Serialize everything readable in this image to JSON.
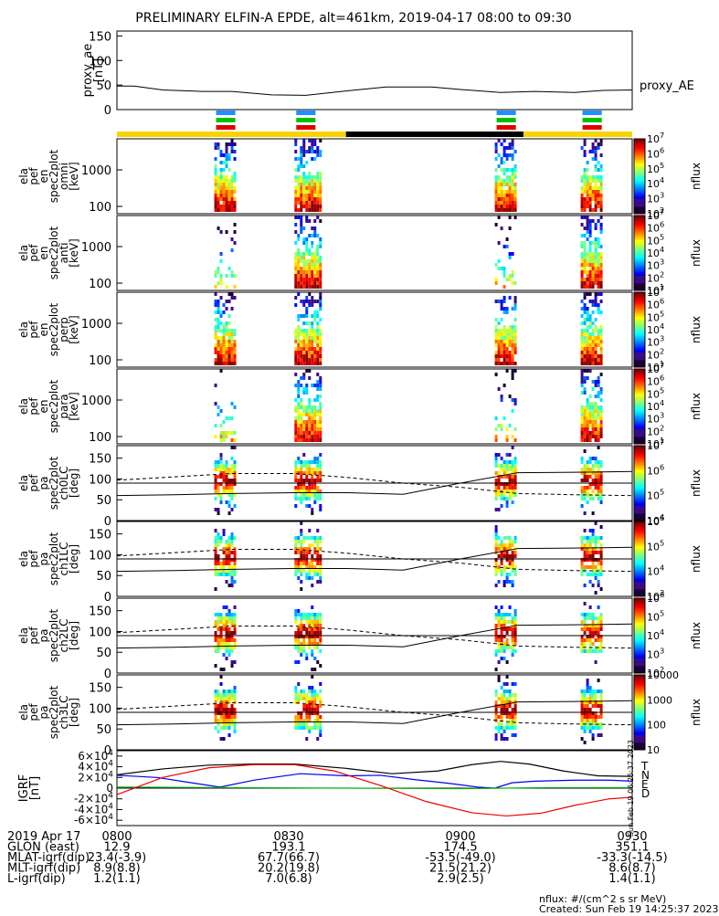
{
  "title": "PRELIMINARY ELFIN-A EPDE, alt=461km, 2019-04-17 08:00 to 09:30",
  "time_axis": {
    "start": "08:00",
    "end": "09:30",
    "ticks": [
      "0800",
      "0830",
      "0900",
      "0930"
    ]
  },
  "footer": {
    "rows": [
      {
        "label": "2019 Apr 17",
        "values": [
          "0800",
          "0830",
          "0900",
          "0930"
        ]
      },
      {
        "label": "GLON (east)",
        "values": [
          "12.9",
          "193.1",
          "174.5",
          "351.1"
        ]
      },
      {
        "label": "MLAT-igrf(dip)",
        "values": [
          "23.4(-3.9)",
          "67.7(66.7)",
          "-53.5(-49.0)",
          "-33.3(-14.5)"
        ]
      },
      {
        "label": "MLT-igrf(dip)",
        "values": [
          "8.9(8.8)",
          "20.2(19.8)",
          "21.5(21.2)",
          "8.6(8.7)"
        ]
      },
      {
        "label": "L-igrf(dip)",
        "values": [
          "1.2(1.1)",
          "7.0(6.8)",
          "2.9(2.5)",
          "1.4(1.1)"
        ]
      }
    ],
    "units_note": "nflux: #/(cm^2 s sr MeV)",
    "created": "Created: Sun Feb 19 14:25:37 2023",
    "side_stamp": "Sun Feb 19 06:25:37 2023"
  },
  "colors": {
    "axis": "#000000",
    "yellow_bar": "#f7d400",
    "black_bar": "#000000",
    "dash_blue": "#1e90ff",
    "dash_green": "#00c000",
    "dash_red": "#e00000"
  },
  "chart_data": [
    {
      "type": "line",
      "id": "proxy_ae",
      "ylabel": [
        "proxy_ae",
        "[nT]"
      ],
      "series_label": "proxy_AE",
      "ylim": [
        0,
        160
      ],
      "yticks": [
        "0",
        "50",
        "100",
        "150"
      ],
      "series": [
        {
          "name": "proxy_AE",
          "points": [
            [
              0,
              48
            ],
            [
              3,
              48
            ],
            [
              8,
              40
            ],
            [
              15,
              37
            ],
            [
              20,
              37
            ],
            [
              27,
              30
            ],
            [
              33,
              29
            ],
            [
              40,
              38
            ],
            [
              47,
              46
            ],
            [
              55,
              46
            ],
            [
              60,
              41
            ],
            [
              67,
              35
            ],
            [
              73,
              37
            ],
            [
              80,
              35
            ],
            [
              85,
              39
            ],
            [
              90,
              40
            ]
          ]
        }
      ]
    },
    {
      "type": "status_bar",
      "id": "science_zones",
      "segments": [
        {
          "from": 0,
          "to": 40,
          "color": "yellow"
        },
        {
          "from": 40,
          "to": 71,
          "color": "black"
        },
        {
          "from": 71,
          "to": 90,
          "color": "yellow"
        }
      ],
      "dash_groups": [
        [
          17,
          21
        ],
        [
          31,
          35
        ],
        [
          66,
          70
        ],
        [
          81,
          85
        ]
      ]
    },
    {
      "type": "heatmap",
      "id": "omni",
      "ylabel": [
        "ela",
        "pef",
        "en",
        "spec2plot",
        "omni",
        "[keV]"
      ],
      "yticks": [
        "100",
        "1000"
      ],
      "colorbar": {
        "label": "nflux",
        "ticks": [
          "10^2",
          "10^3",
          "10^4",
          "10^5",
          "10^6",
          "10^7"
        ]
      },
      "passes": [
        [
          17,
          21,
          "strong"
        ],
        [
          31,
          36,
          "strong"
        ],
        [
          66,
          70,
          "strong"
        ],
        [
          81,
          85,
          "strong"
        ]
      ]
    },
    {
      "type": "heatmap",
      "id": "anti",
      "ylabel": [
        "ela",
        "pef",
        "en",
        "spec2plot",
        "anti",
        "[keV]"
      ],
      "yticks": [
        "100",
        "1000"
      ],
      "colorbar": {
        "label": "nflux",
        "ticks": [
          "10^1",
          "10^2",
          "10^3",
          "10^4",
          "10^5",
          "10^6",
          "10^7"
        ]
      },
      "passes": [
        [
          17,
          21,
          "weak"
        ],
        [
          31,
          36,
          "strong"
        ],
        [
          66,
          70,
          "weak"
        ],
        [
          81,
          85,
          "strong"
        ]
      ]
    },
    {
      "type": "heatmap",
      "id": "perp",
      "ylabel": [
        "ela",
        "pef",
        "en",
        "spec2plot",
        "perp",
        "[keV]"
      ],
      "yticks": [
        "100",
        "1000"
      ],
      "colorbar": {
        "label": "nflux",
        "ticks": [
          "10^1",
          "10^2",
          "10^3",
          "10^4",
          "10^5",
          "10^6",
          "10^7"
        ]
      },
      "passes": [
        [
          17,
          21,
          "strong"
        ],
        [
          31,
          36,
          "strong"
        ],
        [
          66,
          70,
          "strong"
        ],
        [
          81,
          85,
          "strong"
        ]
      ]
    },
    {
      "type": "heatmap",
      "id": "para",
      "ylabel": [
        "ela",
        "pef",
        "en",
        "spec2plot",
        "para",
        "[keV]"
      ],
      "yticks": [
        "100",
        "1000"
      ],
      "colorbar": {
        "label": "nflux",
        "ticks": [
          "10^1",
          "10^2",
          "10^3",
          "10^4",
          "10^5",
          "10^6",
          "10^7"
        ]
      },
      "passes": [
        [
          17,
          21,
          "weak"
        ],
        [
          31,
          36,
          "strong"
        ],
        [
          66,
          70,
          "weak"
        ],
        [
          81,
          85,
          "strong"
        ]
      ]
    },
    {
      "type": "heatmap",
      "id": "ch0LC",
      "ylabel": [
        "ela",
        "pef",
        "pa",
        "spec2plot",
        "ch0LC",
        "[deg]"
      ],
      "yticks": [
        "0",
        "50",
        "100",
        "150"
      ],
      "ylim": [
        0,
        180
      ],
      "colorbar": {
        "label": "nflux",
        "ticks": [
          "10^4",
          "10^5",
          "10^6",
          "10^7"
        ]
      },
      "passes": [
        [
          17,
          21,
          "pa"
        ],
        [
          31,
          36,
          "pa"
        ],
        [
          66,
          70,
          "pa"
        ],
        [
          81,
          85,
          "pa"
        ]
      ],
      "lines": {
        "dashed": [
          [
            0,
            97
          ],
          [
            10,
            105
          ],
          [
            20,
            113
          ],
          [
            31,
            113
          ],
          [
            40,
            104
          ],
          [
            50,
            90
          ],
          [
            60,
            80
          ],
          [
            70,
            65
          ],
          [
            80,
            62
          ],
          [
            90,
            60
          ]
        ],
        "solid": [
          [
            0,
            60
          ],
          [
            10,
            62
          ],
          [
            20,
            65
          ],
          [
            31,
            67
          ],
          [
            40,
            67
          ],
          [
            50,
            63
          ],
          [
            60,
            90
          ],
          [
            70,
            115
          ],
          [
            80,
            116
          ],
          [
            90,
            118
          ]
        ],
        "solid_const": 90
      }
    },
    {
      "type": "heatmap",
      "id": "ch1LC",
      "ylabel": [
        "ela",
        "pef",
        "pa",
        "spec2plot",
        "ch1LC",
        "[deg]"
      ],
      "yticks": [
        "0",
        "50",
        "100",
        "150"
      ],
      "ylim": [
        0,
        180
      ],
      "colorbar": {
        "label": "nflux",
        "ticks": [
          "10^3",
          "10^4",
          "10^5",
          "10^6"
        ]
      },
      "passes": [
        [
          17,
          21,
          "pa"
        ],
        [
          31,
          36,
          "pa"
        ],
        [
          66,
          70,
          "pa"
        ],
        [
          81,
          85,
          "pa"
        ]
      ],
      "lines": {
        "dashed": [
          [
            0,
            97
          ],
          [
            10,
            105
          ],
          [
            20,
            113
          ],
          [
            31,
            113
          ],
          [
            40,
            104
          ],
          [
            50,
            90
          ],
          [
            60,
            80
          ],
          [
            70,
            65
          ],
          [
            80,
            62
          ],
          [
            90,
            60
          ]
        ],
        "solid": [
          [
            0,
            60
          ],
          [
            10,
            62
          ],
          [
            20,
            65
          ],
          [
            31,
            67
          ],
          [
            40,
            67
          ],
          [
            50,
            63
          ],
          [
            60,
            90
          ],
          [
            70,
            115
          ],
          [
            80,
            116
          ],
          [
            90,
            118
          ]
        ],
        "solid_const": 90
      }
    },
    {
      "type": "heatmap",
      "id": "ch2LC",
      "ylabel": [
        "ela",
        "pef",
        "pa",
        "spec2plot",
        "ch2LC",
        "[deg]"
      ],
      "yticks": [
        "0",
        "50",
        "100",
        "150"
      ],
      "ylim": [
        0,
        180
      ],
      "colorbar": {
        "label": "nflux",
        "ticks": [
          "10^2",
          "10^3",
          "10^4",
          "10^5",
          "10^6"
        ]
      },
      "passes": [
        [
          17,
          21,
          "pa"
        ],
        [
          31,
          36,
          "pa"
        ],
        [
          66,
          70,
          "pa"
        ],
        [
          81,
          85,
          "pa"
        ]
      ],
      "lines": {
        "dashed": [
          [
            0,
            97
          ],
          [
            10,
            105
          ],
          [
            20,
            113
          ],
          [
            31,
            113
          ],
          [
            40,
            104
          ],
          [
            50,
            90
          ],
          [
            60,
            80
          ],
          [
            70,
            65
          ],
          [
            80,
            62
          ],
          [
            90,
            60
          ]
        ],
        "solid": [
          [
            0,
            60
          ],
          [
            10,
            62
          ],
          [
            20,
            65
          ],
          [
            31,
            67
          ],
          [
            40,
            67
          ],
          [
            50,
            63
          ],
          [
            60,
            90
          ],
          [
            70,
            115
          ],
          [
            80,
            116
          ],
          [
            90,
            118
          ]
        ],
        "solid_const": 90
      }
    },
    {
      "type": "heatmap",
      "id": "ch3LC",
      "ylabel": [
        "ela",
        "pef",
        "pa",
        "spec2plot",
        "ch3LC",
        "[deg]"
      ],
      "yticks": [
        "0",
        "50",
        "100",
        "150"
      ],
      "ylim": [
        0,
        180
      ],
      "colorbar": {
        "label": "nflux",
        "ticks": [
          "10",
          "100",
          "1000",
          "10000"
        ]
      },
      "passes": [
        [
          17,
          21,
          "pa"
        ],
        [
          31,
          36,
          "pa"
        ],
        [
          66,
          70,
          "pa"
        ],
        [
          81,
          85,
          "pa"
        ]
      ],
      "lines": {
        "dashed": [
          [
            0,
            97
          ],
          [
            10,
            105
          ],
          [
            20,
            113
          ],
          [
            31,
            113
          ],
          [
            40,
            104
          ],
          [
            50,
            90
          ],
          [
            60,
            80
          ],
          [
            70,
            65
          ],
          [
            80,
            62
          ],
          [
            90,
            60
          ]
        ],
        "solid": [
          [
            0,
            60
          ],
          [
            10,
            62
          ],
          [
            20,
            65
          ],
          [
            31,
            67
          ],
          [
            40,
            67
          ],
          [
            50,
            63
          ],
          [
            60,
            90
          ],
          [
            70,
            115
          ],
          [
            80,
            116
          ],
          [
            90,
            118
          ]
        ],
        "solid_const": 90
      }
    },
    {
      "type": "line",
      "id": "igrf",
      "ylabel": [
        "IGRF",
        "[nT]"
      ],
      "ylim": [
        -70000,
        70000
      ],
      "yticks": [
        "-6x10^4",
        "-4x10^4",
        "-2x10^4",
        "0",
        "2x10^4",
        "4x10^4",
        "6x10^4"
      ],
      "series": [
        {
          "name": "T",
          "color": "#000000",
          "points": [
            [
              0,
              25000
            ],
            [
              8,
              36000
            ],
            [
              16,
              43000
            ],
            [
              24,
              45000
            ],
            [
              31,
              45000
            ],
            [
              40,
              37000
            ],
            [
              48,
              27000
            ],
            [
              56,
              32000
            ],
            [
              62,
              44000
            ],
            [
              67,
              50000
            ],
            [
              72,
              45000
            ],
            [
              78,
              32000
            ],
            [
              84,
              23000
            ],
            [
              90,
              22000
            ]
          ]
        },
        {
          "name": "N",
          "color": "#0000ee",
          "points": [
            [
              0,
              24000
            ],
            [
              7,
              20000
            ],
            [
              13,
              10000
            ],
            [
              18,
              2000
            ],
            [
              24,
              15000
            ],
            [
              32,
              27000
            ],
            [
              40,
              23000
            ],
            [
              46,
              24000
            ],
            [
              52,
              16000
            ],
            [
              58,
              9000
            ],
            [
              63,
              2000
            ],
            [
              66,
              0
            ],
            [
              69,
              10000
            ],
            [
              73,
              13000
            ],
            [
              80,
              15000
            ],
            [
              86,
              15000
            ],
            [
              90,
              13000
            ]
          ]
        },
        {
          "name": "E",
          "color": "#00b000",
          "points": [
            [
              0,
              2000
            ],
            [
              20,
              1000
            ],
            [
              40,
              0
            ],
            [
              60,
              -1000
            ],
            [
              75,
              1000
            ],
            [
              90,
              1000
            ]
          ]
        },
        {
          "name": "D",
          "color": "#ee0000",
          "points": [
            [
              0,
              -12000
            ],
            [
              8,
              20000
            ],
            [
              16,
              38000
            ],
            [
              24,
              44000
            ],
            [
              31,
              44000
            ],
            [
              38,
              32000
            ],
            [
              46,
              5000
            ],
            [
              54,
              -25000
            ],
            [
              62,
              -46000
            ],
            [
              68,
              -52000
            ],
            [
              74,
              -47000
            ],
            [
              80,
              -32000
            ],
            [
              86,
              -20000
            ],
            [
              90,
              -17000
            ]
          ]
        }
      ]
    }
  ]
}
